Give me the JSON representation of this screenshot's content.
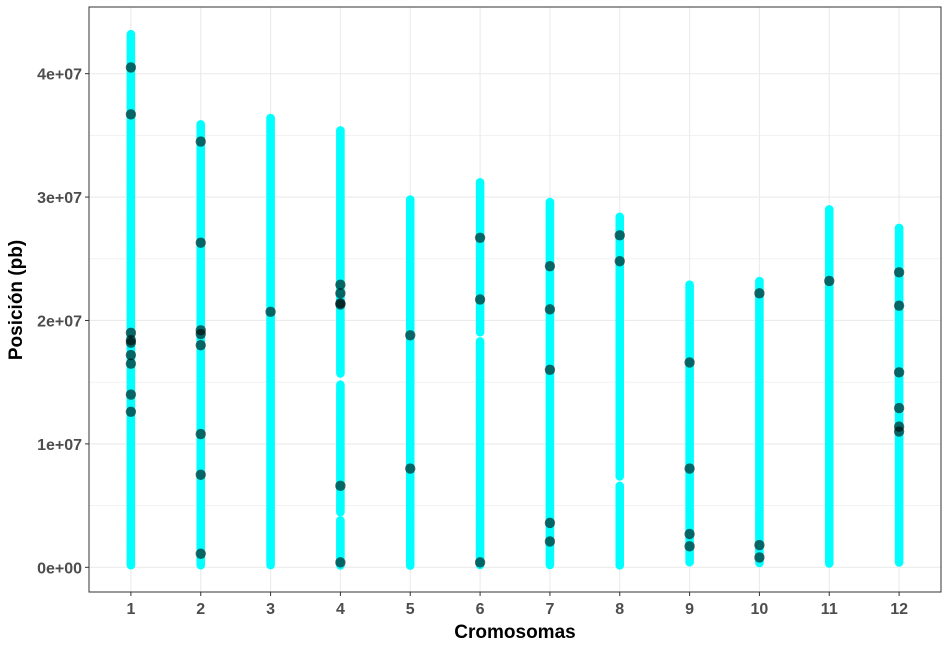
{
  "chart_data": {
    "type": "scatter",
    "title": "",
    "xlabel": "Cromosomas",
    "ylabel": "Posición (pb)",
    "categories": [
      "1",
      "2",
      "3",
      "4",
      "5",
      "6",
      "7",
      "8",
      "9",
      "10",
      "11",
      "12"
    ],
    "x_ticks": [
      "1",
      "2",
      "3",
      "4",
      "5",
      "6",
      "7",
      "8",
      "9",
      "10",
      "11",
      "12"
    ],
    "y_ticks": [
      {
        "value": 0,
        "label": "0e+00"
      },
      {
        "value": 10000000,
        "label": "1e+07"
      },
      {
        "value": 20000000,
        "label": "2e+07"
      },
      {
        "value": 30000000,
        "label": "3e+07"
      },
      {
        "value": 40000000,
        "label": "4e+07"
      }
    ],
    "ylim": [
      -2000000,
      45400000
    ],
    "grid": true,
    "colors": {
      "background_markers": "#00ffff",
      "highlight_markers": "#1a5555",
      "grid": "#ebebeb",
      "panel_border": "#333333"
    },
    "series": [
      {
        "role": "all-markers",
        "color": "#00ffff",
        "ranges": [
          {
            "chr": "1",
            "segments": [
              [
                0.1,
                43.2
              ]
            ]
          },
          {
            "chr": "2",
            "segments": [
              [
                0.1,
                35.9
              ]
            ]
          },
          {
            "chr": "3",
            "segments": [
              [
                0.1,
                36.4
              ]
            ]
          },
          {
            "chr": "4",
            "segments": [
              [
                0.1,
                3.8
              ],
              [
                4.4,
                14.8
              ],
              [
                15.6,
                35.4
              ]
            ]
          },
          {
            "chr": "5",
            "segments": [
              [
                0.1,
                29.8
              ]
            ]
          },
          {
            "chr": "6",
            "segments": [
              [
                0.1,
                18.3
              ],
              [
                19.0,
                31.2
              ]
            ]
          },
          {
            "chr": "7",
            "segments": [
              [
                0.1,
                29.6
              ]
            ]
          },
          {
            "chr": "8",
            "segments": [
              [
                0.1,
                6.6
              ],
              [
                7.3,
                28.4
              ]
            ]
          },
          {
            "chr": "9",
            "segments": [
              [
                0.4,
                22.9
              ]
            ]
          },
          {
            "chr": "10",
            "segments": [
              [
                0.3,
                23.2
              ]
            ]
          },
          {
            "chr": "11",
            "segments": [
              [
                0.3,
                29.0
              ]
            ]
          },
          {
            "chr": "12",
            "segments": [
              [
                0.3,
                27.5
              ]
            ]
          }
        ]
      },
      {
        "role": "highlighted-markers",
        "color": "#1a5555",
        "points": [
          {
            "chr": "1",
            "y_mb": [
              40.5,
              36.7,
              19.0,
              18.4,
              18.2,
              17.2,
              16.5,
              14.0,
              12.6
            ]
          },
          {
            "chr": "2",
            "y_mb": [
              34.5,
              26.3,
              19.2,
              18.9,
              18.0,
              10.8,
              7.5,
              1.1
            ]
          },
          {
            "chr": "3",
            "y_mb": [
              20.7
            ]
          },
          {
            "chr": "4",
            "y_mb": [
              22.9,
              22.2,
              21.4,
              21.3,
              6.6,
              0.4
            ]
          },
          {
            "chr": "5",
            "y_mb": [
              18.8,
              8.0
            ]
          },
          {
            "chr": "6",
            "y_mb": [
              26.7,
              21.7,
              0.4
            ]
          },
          {
            "chr": "7",
            "y_mb": [
              24.4,
              20.9,
              16.0,
              3.6,
              2.1
            ]
          },
          {
            "chr": "8",
            "y_mb": [
              26.9,
              24.8
            ]
          },
          {
            "chr": "9",
            "y_mb": [
              16.6,
              8.0,
              2.7,
              1.7
            ]
          },
          {
            "chr": "10",
            "y_mb": [
              22.2,
              1.8,
              0.8
            ]
          },
          {
            "chr": "11",
            "y_mb": [
              23.2
            ]
          },
          {
            "chr": "12",
            "y_mb": [
              23.9,
              21.2,
              15.8,
              12.9,
              11.4,
              11.0
            ]
          }
        ]
      }
    ]
  }
}
